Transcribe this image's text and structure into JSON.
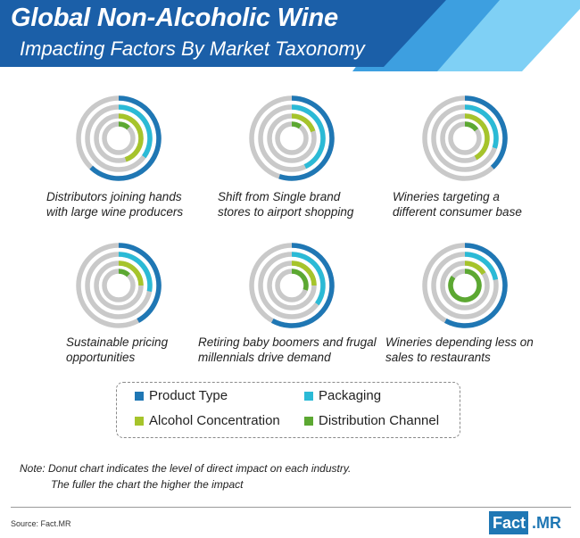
{
  "header": {
    "title": "Global Non-Alcoholic Wine",
    "subtitle": "Impacting Factors By Market Taxonomy",
    "colors": {
      "dark": "#1b5fa8",
      "mid": "#3d9fe0",
      "light": "#7fd0f5"
    }
  },
  "chart_data": {
    "type": "donut",
    "rings_order": [
      "Product Type",
      "Packaging",
      "Alcohol Concentration",
      "Distribution Channel"
    ],
    "colors": {
      "Product Type": "#1f77b4",
      "Packaging": "#2bbad6",
      "Alcohol Concentration": "#a6c42b",
      "Distribution Channel": "#5ca832",
      "track": "#c9c9c9"
    },
    "charts": [
      {
        "label_lines": [
          "Distributors joining hands",
          "with large wine producers"
        ],
        "values": {
          "Product Type": 0.62,
          "Packaging": 0.35,
          "Alcohol Concentration": 0.45,
          "Distribution Channel": 0.12
        }
      },
      {
        "label_lines": [
          "Shift from Single brand",
          "stores to airport shopping"
        ],
        "values": {
          "Product Type": 0.55,
          "Packaging": 0.43,
          "Alcohol Concentration": 0.2,
          "Distribution Channel": 0.1
        }
      },
      {
        "label_lines": [
          "Wineries targeting a",
          "different consumer base"
        ],
        "values": {
          "Product Type": 0.38,
          "Packaging": 0.3,
          "Alcohol Concentration": 0.42,
          "Distribution Channel": 0.15
        }
      },
      {
        "label_lines": [
          "Sustainable pricing",
          "opportunities"
        ],
        "values": {
          "Product Type": 0.42,
          "Packaging": 0.28,
          "Alcohol Concentration": 0.25,
          "Distribution Channel": 0.12
        }
      },
      {
        "label_lines": [
          "Retiring baby boomers and frugal",
          "millennials drive demand"
        ],
        "values": {
          "Product Type": 0.58,
          "Packaging": 0.35,
          "Alcohol Concentration": 0.25,
          "Distribution Channel": 0.3
        }
      },
      {
        "label_lines": [
          "Wineries depending less on",
          "sales to restaurants"
        ],
        "values": {
          "Product Type": 0.58,
          "Packaging": 0.22,
          "Alcohol Concentration": 0.16,
          "Distribution Channel": 0.85
        }
      }
    ]
  },
  "legend": {
    "items": [
      {
        "label": "Product Type",
        "color": "#1f77b4"
      },
      {
        "label": "Packaging",
        "color": "#2bbad6"
      },
      {
        "label": "Alcohol Concentration",
        "color": "#a6c42b"
      },
      {
        "label": "Distribution Channel",
        "color": "#5ca832"
      }
    ]
  },
  "note": {
    "line1": "Note: Donut chart indicates the level of direct impact on each industry.",
    "line2": "The fuller the chart the higher the impact"
  },
  "footer": {
    "source": "Source: Fact.MR",
    "logo_part1": "Fact",
    "logo_part2": ".MR"
  }
}
